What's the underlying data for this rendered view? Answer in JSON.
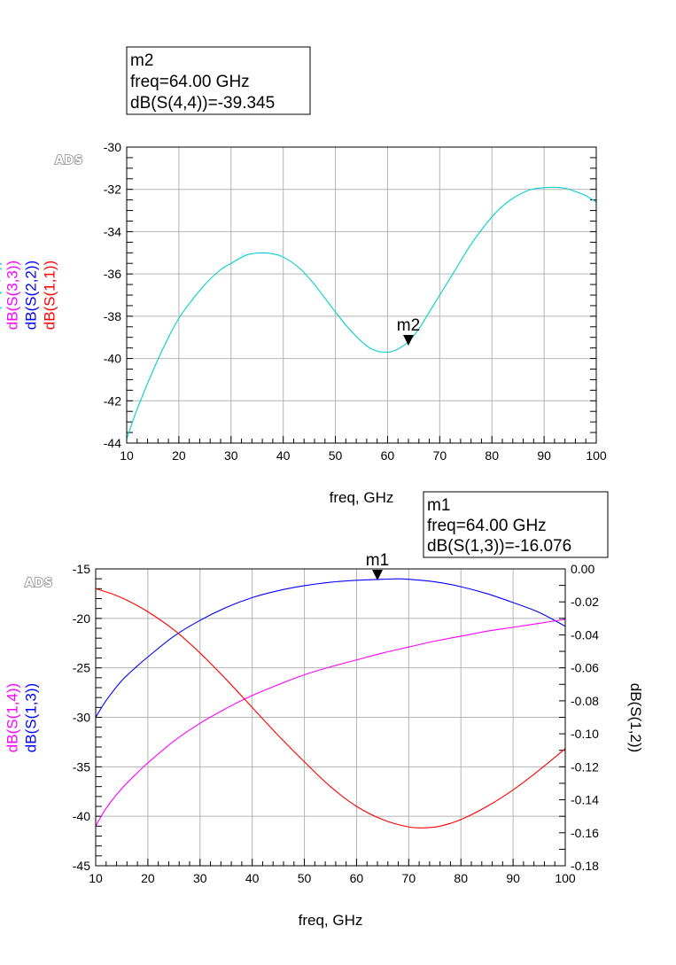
{
  "chart_data": [
    {
      "type": "line",
      "ads_mark": "ADS",
      "xlabel": "freq, GHz",
      "xlim": [
        10,
        100
      ],
      "ylim": [
        -44,
        -30
      ],
      "x_ticks": [
        "10",
        "20",
        "30",
        "40",
        "50",
        "60",
        "70",
        "80",
        "90",
        "100"
      ],
      "y_ticks": [
        "-30",
        "-32",
        "-34",
        "-36",
        "-38",
        "-40",
        "-42",
        "-44"
      ],
      "ylabels": [
        {
          "text": "dB(S(4,4))",
          "color": "#00d0d0"
        },
        {
          "text": "dB(S(3,3))",
          "color": "#ff00ff"
        },
        {
          "text": "dB(S(2,2))",
          "color": "#0000ff"
        },
        {
          "text": "dB(S(1,1))",
          "color": "#ff0000"
        }
      ],
      "series": [
        {
          "name": "dB(S(4,4))",
          "color": "#00d0d0",
          "axis": "left",
          "x": [
            10,
            12,
            15,
            18,
            20,
            22,
            25,
            28,
            30,
            33,
            36,
            38,
            40,
            43,
            46,
            50,
            53,
            56,
            58,
            60,
            61,
            62,
            64,
            66,
            68,
            70,
            73,
            76,
            80,
            83,
            86,
            88,
            90,
            92,
            94,
            96,
            98,
            100
          ],
          "y": [
            -43.8,
            -42.4,
            -40.6,
            -39.0,
            -38.1,
            -37.4,
            -36.5,
            -35.8,
            -35.5,
            -35.1,
            -35.0,
            -35.05,
            -35.2,
            -35.7,
            -36.5,
            -37.8,
            -38.7,
            -39.4,
            -39.65,
            -39.7,
            -39.65,
            -39.55,
            -39.2,
            -38.6,
            -37.8,
            -37.0,
            -35.8,
            -34.6,
            -33.3,
            -32.6,
            -32.15,
            -31.98,
            -31.92,
            -31.9,
            -31.95,
            -32.1,
            -32.3,
            -32.6
          ]
        }
      ],
      "marker": {
        "name": "m2",
        "series": "dB(S(4,4))",
        "x": 64.0,
        "y": -39.345,
        "lines": [
          "m2",
          "freq=64.00 GHz",
          "dB(S(4,4))=-39.345"
        ]
      }
    },
    {
      "type": "line",
      "ads_mark": "ADS",
      "xlabel": "freq, GHz",
      "xlim": [
        10,
        100
      ],
      "ylim": [
        -45,
        -15
      ],
      "y2lim": [
        -0.18,
        0.0
      ],
      "x_ticks": [
        "10",
        "20",
        "30",
        "40",
        "50",
        "60",
        "70",
        "80",
        "90",
        "100"
      ],
      "y_ticks": [
        "-15",
        "-20",
        "-25",
        "-30",
        "-35",
        "-40",
        "-45"
      ],
      "y2_ticks": [
        "0.00",
        "-0.02",
        "-0.04",
        "-0.06",
        "-0.08",
        "-0.10",
        "-0.12",
        "-0.14",
        "-0.16",
        "-0.18"
      ],
      "ylabels": [
        {
          "text": "dB(S(1,4))",
          "color": "#ff00ff"
        },
        {
          "text": "dB(S(1,3))",
          "color": "#0000ff"
        }
      ],
      "y2label": {
        "text": "dB(S(1,2))",
        "color": "#ff0000"
      },
      "series": [
        {
          "name": "dB(S(1,3))",
          "color": "#0000ff",
          "axis": "left",
          "x": [
            10,
            12,
            15,
            18,
            20,
            25,
            30,
            35,
            40,
            45,
            50,
            55,
            60,
            65,
            68,
            70,
            75,
            80,
            85,
            90,
            95,
            100
          ],
          "y": [
            -30.0,
            -28.3,
            -26.3,
            -24.8,
            -23.9,
            -21.8,
            -20.2,
            -18.9,
            -17.9,
            -17.2,
            -16.7,
            -16.35,
            -16.15,
            -16.05,
            -16.0,
            -16.05,
            -16.3,
            -16.8,
            -17.5,
            -18.4,
            -19.4,
            -20.8
          ]
        },
        {
          "name": "dB(S(1,4))",
          "color": "#ff00ff",
          "axis": "left",
          "x": [
            10,
            12,
            15,
            18,
            20,
            25,
            30,
            35,
            40,
            45,
            50,
            55,
            60,
            65,
            70,
            75,
            80,
            85,
            90,
            95,
            100
          ],
          "y": [
            -41.0,
            -39.2,
            -37.2,
            -35.6,
            -34.6,
            -32.4,
            -30.6,
            -29.1,
            -27.8,
            -26.7,
            -25.7,
            -24.9,
            -24.2,
            -23.5,
            -22.9,
            -22.3,
            -21.8,
            -21.3,
            -20.9,
            -20.5,
            -20.1
          ]
        },
        {
          "name": "dB(S(1,2))",
          "color": "#ff0000",
          "axis": "right",
          "x": [
            10,
            13,
            16,
            20,
            25,
            30,
            35,
            40,
            45,
            50,
            55,
            60,
            65,
            70,
            73,
            76,
            80,
            85,
            90,
            95,
            100
          ],
          "y": [
            -0.012,
            -0.015,
            -0.019,
            -0.026,
            -0.037,
            -0.051,
            -0.067,
            -0.084,
            -0.101,
            -0.117,
            -0.132,
            -0.144,
            -0.152,
            -0.1565,
            -0.157,
            -0.156,
            -0.152,
            -0.144,
            -0.134,
            -0.122,
            -0.109
          ]
        }
      ],
      "marker": {
        "name": "m1",
        "series": "dB(S(1,3))",
        "x": 64.0,
        "y": -16.076,
        "lines": [
          "m1",
          "freq=64.00 GHz",
          "dB(S(1,3))=-16.076"
        ]
      }
    }
  ]
}
